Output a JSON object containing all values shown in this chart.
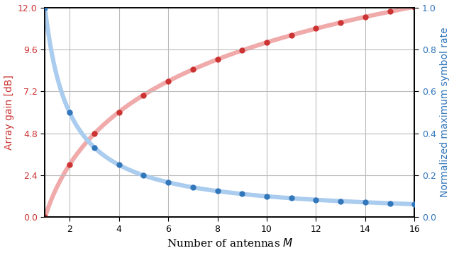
{
  "M_values": [
    1,
    2,
    3,
    4,
    5,
    6,
    7,
    8,
    9,
    10,
    11,
    12,
    13,
    14,
    15,
    16
  ],
  "red_values": [
    0.0,
    3.0103,
    4.7712,
    6.0206,
    6.9897,
    7.7815,
    8.451,
    9.0309,
    9.5424,
    10.0,
    10.4139,
    10.7918,
    11.1394,
    11.4613,
    11.7609,
    12.0412
  ],
  "blue_values": [
    1.0,
    0.5,
    0.3333,
    0.25,
    0.2,
    0.1667,
    0.1429,
    0.125,
    0.1111,
    0.1,
    0.0909,
    0.0833,
    0.0769,
    0.0714,
    0.0667,
    0.0625
  ],
  "xlabel": "Number of antennas $M$",
  "ylabel_left": "Array gain [dB]",
  "ylabel_right": "Normalized maximum symbol rate",
  "xlim": [
    1,
    16
  ],
  "ylim_left": [
    0.0,
    12.0
  ],
  "ylim_right": [
    0.0,
    1.0
  ],
  "yticks_left": [
    0.0,
    2.4,
    4.8,
    7.2,
    9.6,
    12.0
  ],
  "yticks_right": [
    0.0,
    0.2,
    0.4,
    0.6,
    0.8,
    1.0
  ],
  "xticks": [
    2,
    4,
    6,
    8,
    10,
    12,
    14,
    16
  ],
  "red_color": "#cc3333",
  "red_line_color": "#f0aaaa",
  "blue_color": "#3377bb",
  "blue_line_color": "#aaccee",
  "marker_size": 6,
  "line_width": 2.2,
  "grid_color": "#bbbbbb"
}
